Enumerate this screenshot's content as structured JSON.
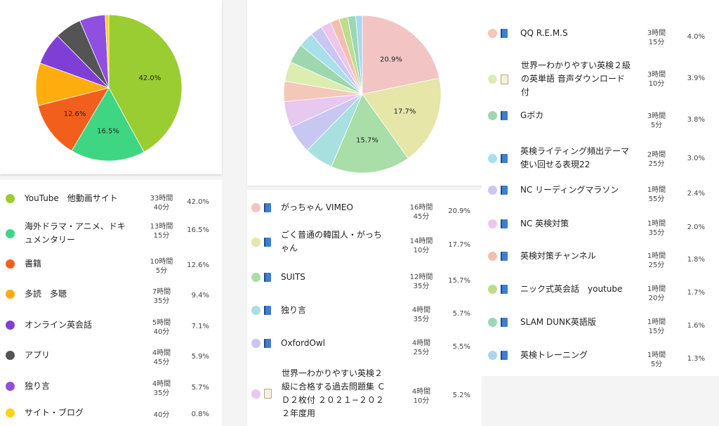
{
  "chart_data": [
    {
      "type": "pie",
      "title": "",
      "slices": [
        {
          "label": "YouTube　他動画サイト",
          "time": "33時間\n40分",
          "percent": 42.0,
          "pct_label": "42.0%",
          "color": "#9acd32"
        },
        {
          "label": "海外ドラマ・アニメ、ドキュメンタリー",
          "time": "13時間\n15分",
          "percent": 16.5,
          "pct_label": "16.5%",
          "color": "#3fd683"
        },
        {
          "label": "書籍",
          "time": "10時間\n5分",
          "percent": 12.6,
          "pct_label": "12.6%",
          "color": "#f25f1c"
        },
        {
          "label": "多読　多聴",
          "time": "7時間\n35分",
          "percent": 9.4,
          "pct_label": "9.4%",
          "color": "#ffac0f"
        },
        {
          "label": "オンライン英会話",
          "time": "5時間\n40分",
          "percent": 7.1,
          "pct_label": "7.1%",
          "color": "#7f3fd6"
        },
        {
          "label": "アプリ",
          "time": "4時間\n45分",
          "percent": 5.9,
          "pct_label": "5.9%",
          "color": "#545454"
        },
        {
          "label": "独り言",
          "time": "4時間\n35分",
          "percent": 5.7,
          "pct_label": "5.7%",
          "color": "#8f4fe0"
        },
        {
          "label": "サイト・ブログ",
          "time": "40分",
          "percent": 0.8,
          "pct_label": "0.8%",
          "color": "#ffd21a"
        }
      ],
      "show_labels": [
        "42.0%",
        "16.5%",
        "12.6%"
      ]
    },
    {
      "type": "pie",
      "title": "",
      "slices": [
        {
          "label": "がっちゃん VIMEO",
          "time": "16時間\n45分",
          "percent": 20.9,
          "pct_label": "20.9%",
          "color": "#f2c4c4"
        },
        {
          "label": "ごく普通の韓国人・がっちゃん",
          "time": "14時間\n10分",
          "percent": 17.7,
          "pct_label": "17.7%",
          "color": "#e5e6a8"
        },
        {
          "label": "SUITS",
          "time": "12時間\n35分",
          "percent": 15.7,
          "pct_label": "15.7%",
          "color": "#a9dea9"
        },
        {
          "label": "独り言",
          "time": "4時間\n35分",
          "percent": 5.7,
          "pct_label": "5.7%",
          "color": "#a8e0e0"
        },
        {
          "label": "OxfordOwl",
          "time": "4時間\n25分",
          "percent": 5.5,
          "pct_label": "5.5%",
          "color": "#c7c7f2"
        },
        {
          "label": "世界一わかりやすい英検２級に合格する過去問題集 ＣＤ２枚付 ２０２１−２０２２年度用",
          "time": "4時間\n10分",
          "percent": 5.2,
          "pct_label": "5.2%",
          "color": "#e7c8ef"
        },
        {
          "label": "QQ R.E.M.S",
          "time": "3時間\n15分",
          "percent": 4.0,
          "pct_label": "4.0%",
          "color": "#f3c8b8"
        },
        {
          "label": "世界一わかりやすい英検２級の英単語 音声ダウンロード付",
          "time": "3時間\n10分",
          "percent": 3.9,
          "pct_label": "3.9%",
          "color": "#dcedb2"
        },
        {
          "label": "Gボカ",
          "time": "3時間\n5分",
          "percent": 3.8,
          "pct_label": "3.8%",
          "color": "#9ed7ad"
        },
        {
          "label": "英検ライティング頻出テーマ使い回せる表現22",
          "time": "2時間\n25分",
          "percent": 3.0,
          "pct_label": "3.0%",
          "color": "#a9dfea"
        },
        {
          "label": "NC リーディングマラソン",
          "time": "1時間\n55分",
          "percent": 2.4,
          "pct_label": "2.4%",
          "color": "#c9c7f2"
        },
        {
          "label": "NC 英検対策",
          "time": "1時間\n35分",
          "percent": 2.0,
          "pct_label": "2.0%",
          "color": "#f0c5ea"
        },
        {
          "label": "英検対策チャンネル",
          "time": "1時間\n25分",
          "percent": 1.8,
          "pct_label": "1.8%",
          "color": "#f1c0ad"
        },
        {
          "label": "ニック式英会話　youtube",
          "time": "1時間\n20分",
          "percent": 1.7,
          "pct_label": "1.7%",
          "color": "#bfdc8f"
        },
        {
          "label": "SLAM DUNK英語版",
          "time": "1時間\n15分",
          "percent": 1.6,
          "pct_label": "1.6%",
          "color": "#9ad8b7"
        },
        {
          "label": "英検トレーニング",
          "time": "1時間\n5分",
          "percent": 1.3,
          "pct_label": "1.3%",
          "color": "#a9d7ee"
        }
      ],
      "show_labels": [
        "20.9%",
        "17.7%",
        "15.7%"
      ]
    }
  ]
}
